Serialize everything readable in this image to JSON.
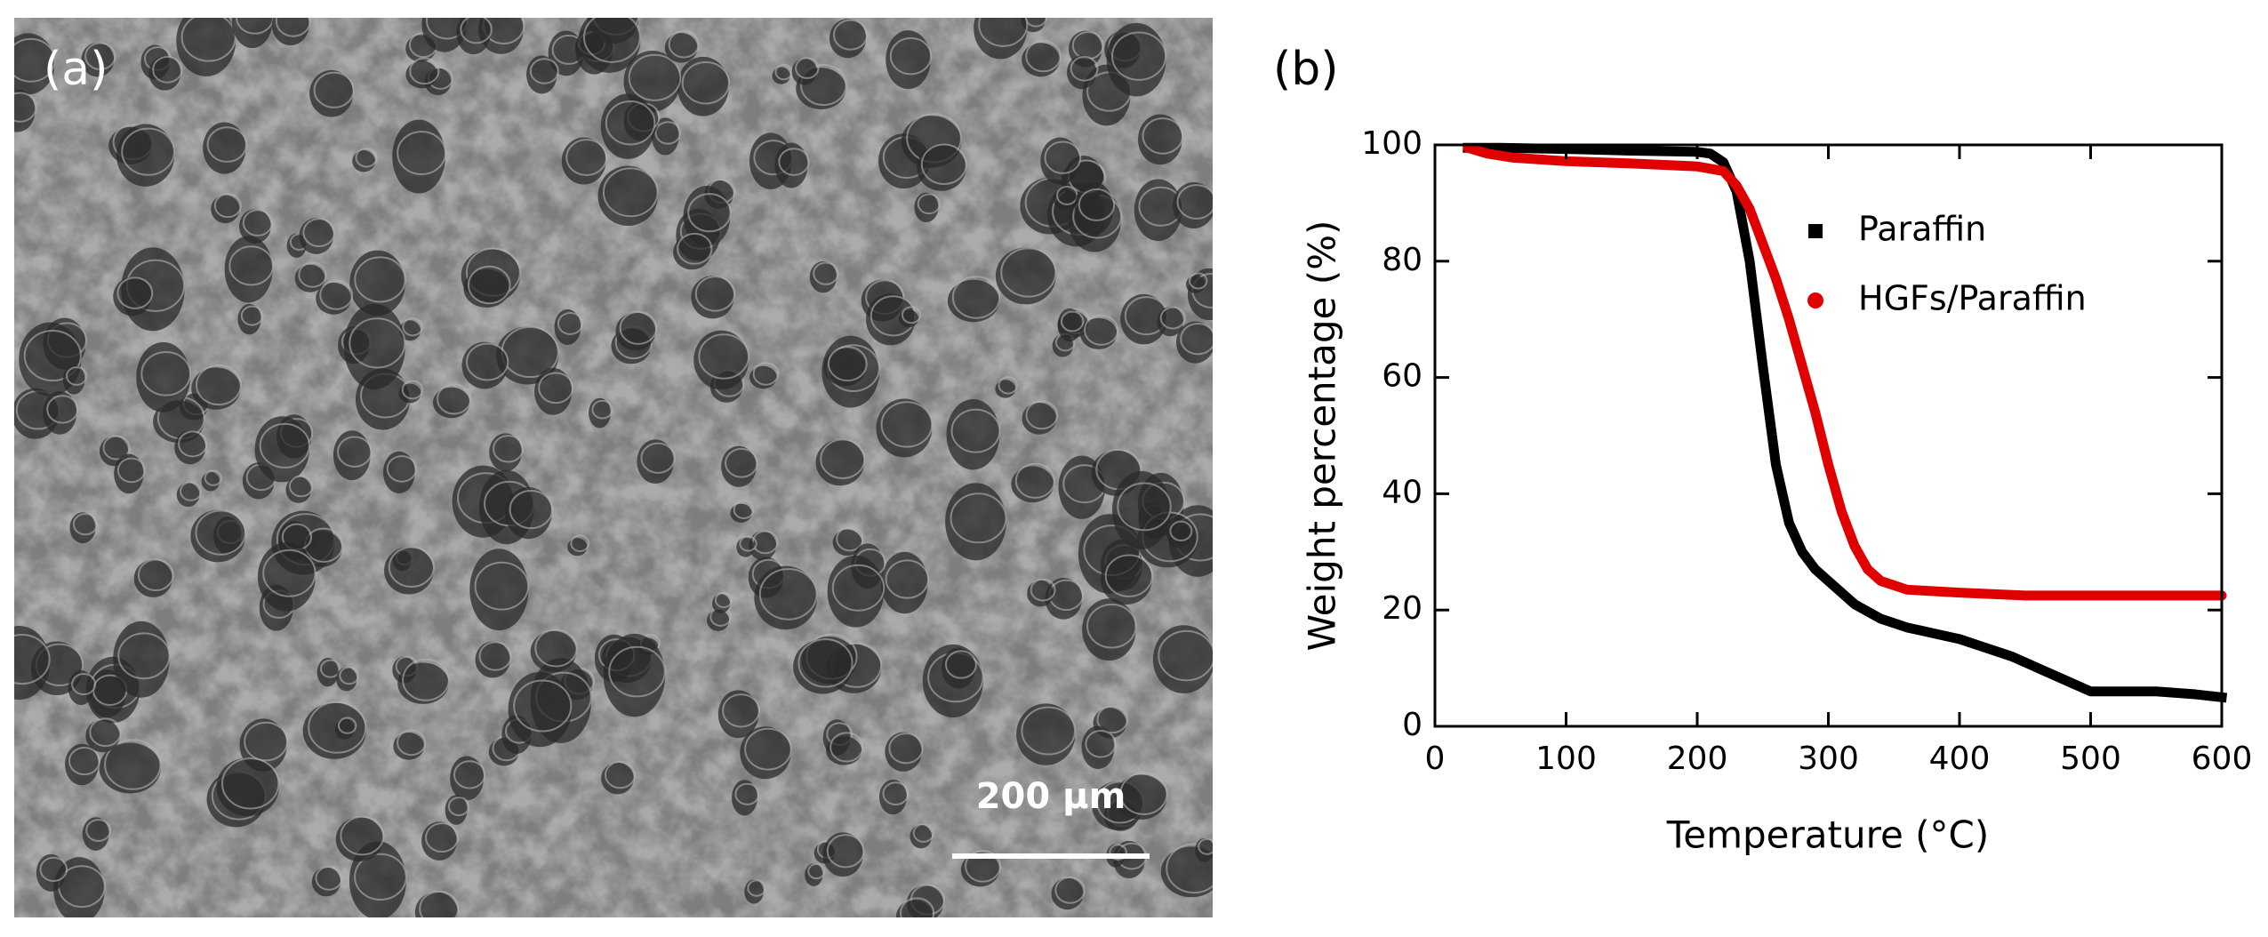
{
  "image_panel": {
    "label": "(a)",
    "scale_bar_label": "200 μm"
  },
  "chart_data": {
    "type": "line",
    "panel_label": "(b)",
    "x_label": "Temperature (°C)",
    "y_label": "Weight percentage (%)",
    "xlim": [
      0,
      600
    ],
    "xticks": [
      0,
      100,
      200,
      300,
      400,
      500,
      600
    ],
    "ylim": [
      0,
      100
    ],
    "yticks": [
      0,
      20,
      40,
      60,
      80,
      100
    ],
    "grid": false,
    "legend": "upper right",
    "series": [
      {
        "name": "Paraffin",
        "color": "#000000",
        "marker": "square",
        "x": [
          25,
          50,
          100,
          150,
          200,
          210,
          220,
          230,
          240,
          250,
          260,
          270,
          280,
          290,
          300,
          320,
          340,
          360,
          380,
          400,
          420,
          440,
          460,
          480,
          500,
          520,
          550,
          580,
          600
        ],
        "values": [
          99.5,
          99.5,
          99.3,
          99,
          98.8,
          98.5,
          97,
          92,
          80,
          62,
          45,
          35,
          30,
          27,
          25,
          21,
          18.5,
          17,
          16,
          15,
          13.5,
          12,
          10,
          8,
          6,
          6,
          6,
          5.5,
          5
        ]
      },
      {
        "name": "HGFs/Paraffin",
        "color": "#e00000",
        "marker": "circle",
        "x": [
          25,
          40,
          60,
          100,
          150,
          200,
          220,
          230,
          240,
          250,
          260,
          270,
          280,
          290,
          300,
          310,
          320,
          330,
          340,
          360,
          400,
          450,
          500,
          550,
          600
        ],
        "values": [
          99.5,
          98.5,
          97.8,
          97.2,
          96.8,
          96.3,
          95.5,
          93,
          89,
          83,
          77,
          70,
          62,
          54,
          45,
          37,
          31,
          27,
          25,
          23.5,
          23,
          22.5,
          22.5,
          22.5,
          22.5
        ]
      }
    ]
  }
}
